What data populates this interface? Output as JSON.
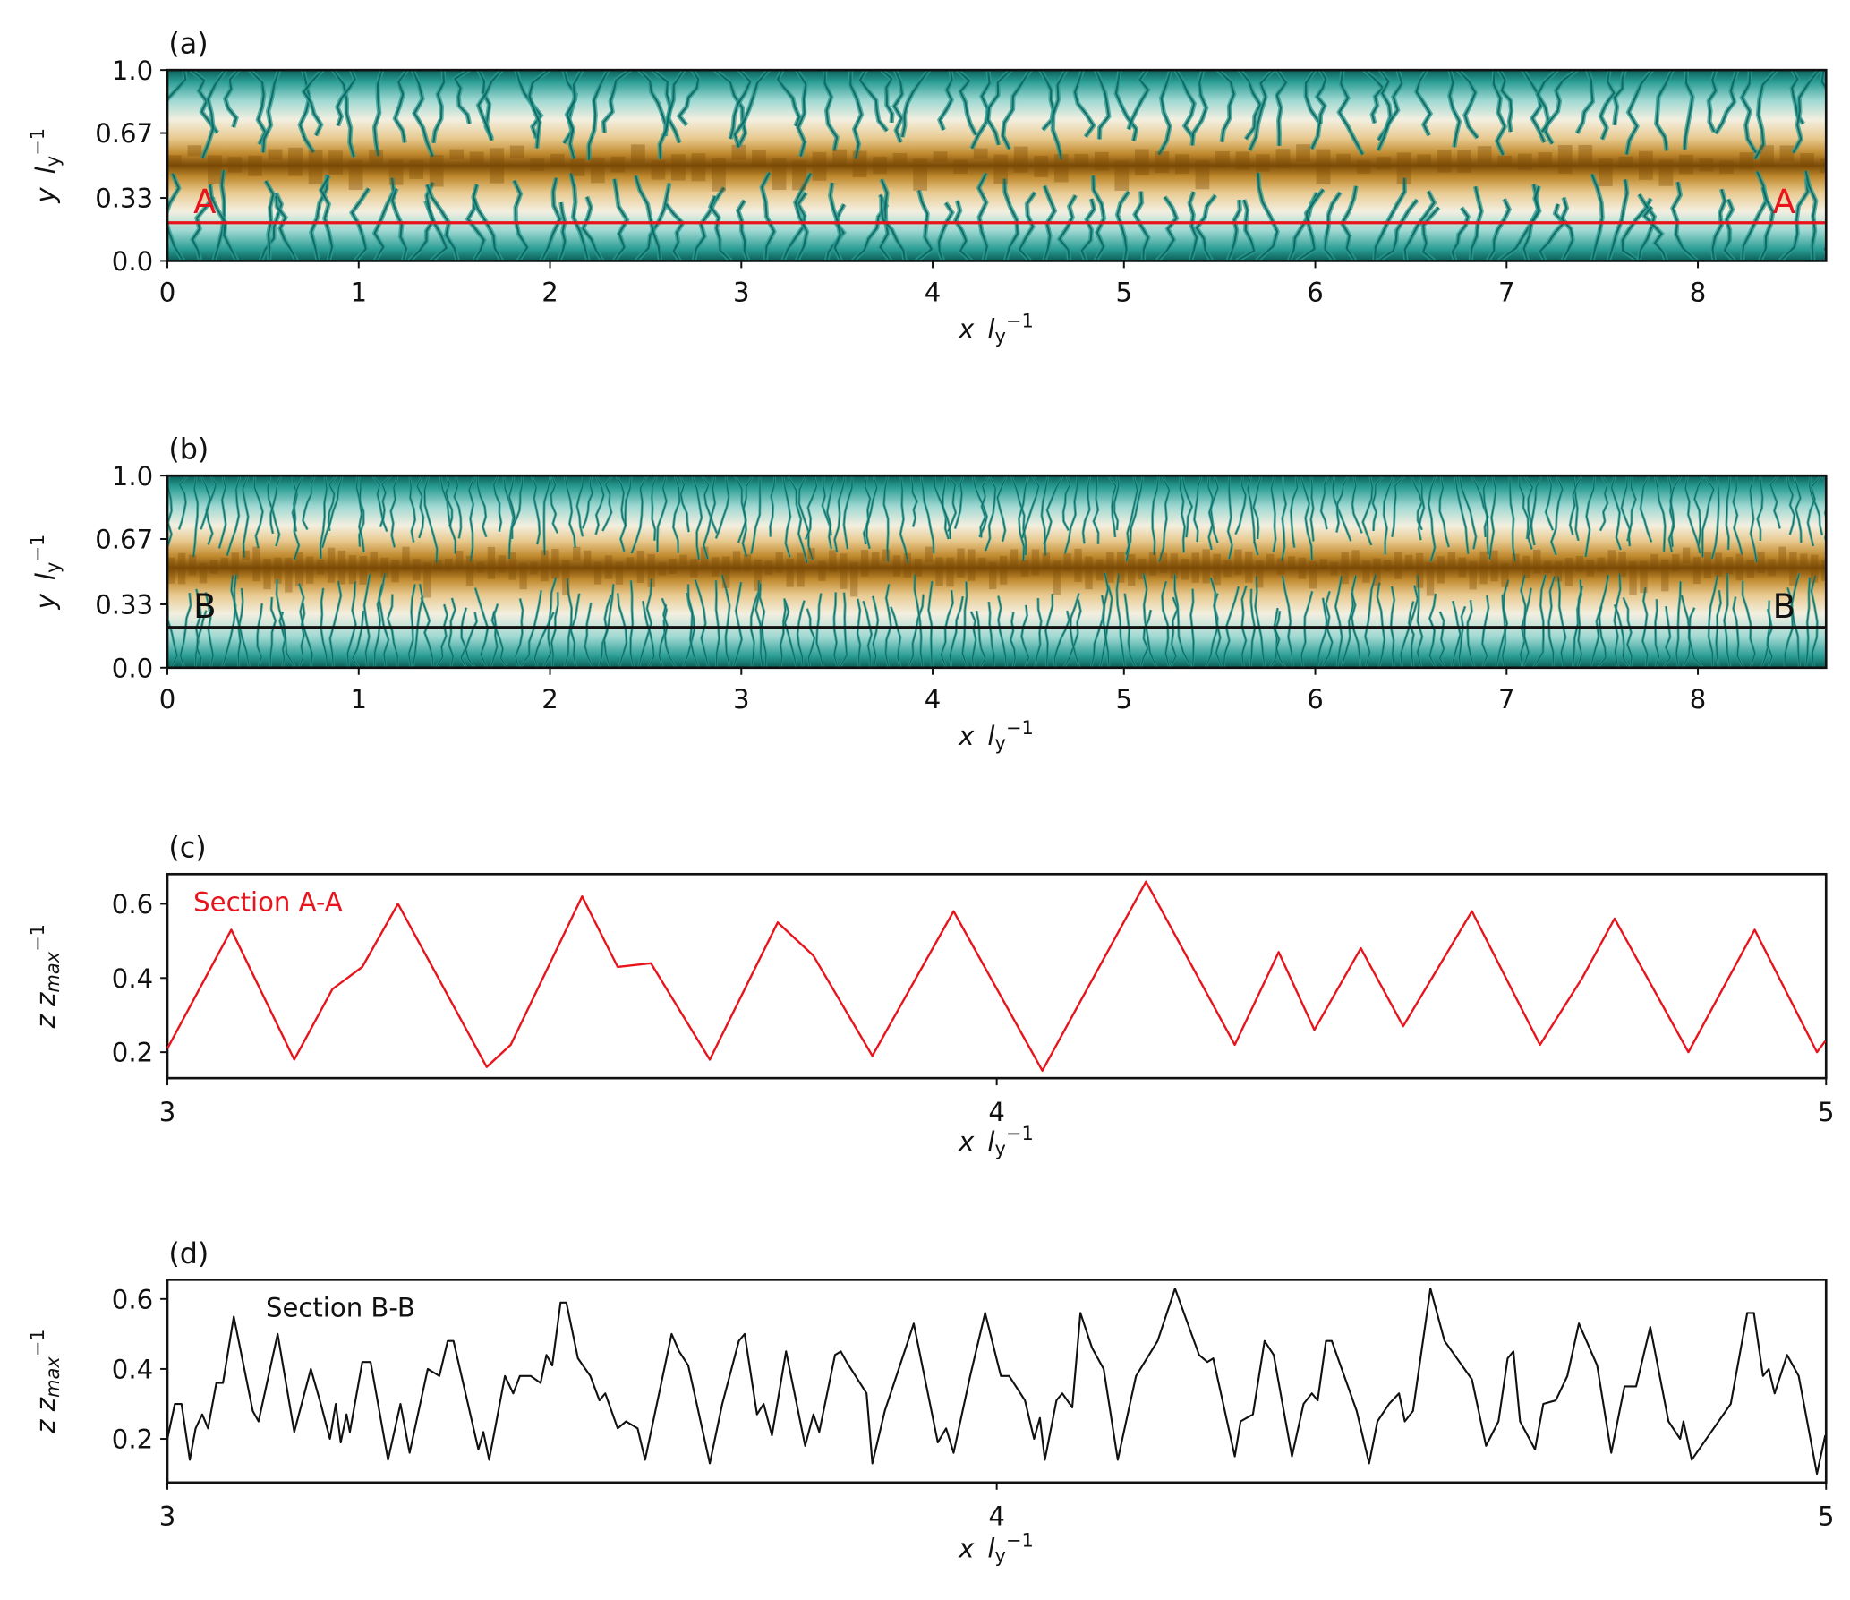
{
  "chart_data": [
    {
      "panel_label": "(a)",
      "type": "heatmap",
      "xlabel": "x l_y^{-1}",
      "ylabel": "y l_y^{-1}",
      "xlim": [
        0,
        8.67
      ],
      "ylim": [
        0,
        1.0
      ],
      "xticks": [
        "0",
        "1",
        "2",
        "3",
        "4",
        "5",
        "6",
        "7",
        "8"
      ],
      "yticks": [
        "0.0",
        "0.33",
        "0.67",
        "1.0"
      ],
      "colormap": [
        "#0b5e57",
        "#2a9d94",
        "#9fd8d2",
        "#f3efe0",
        "#e8c98f",
        "#c08a2e",
        "#7a4a06"
      ],
      "section_line": {
        "y": 0.2,
        "color": "#e8141c",
        "label_left": "A",
        "label_right": "A"
      },
      "ridge_y": 0.5,
      "texture": "coarse"
    },
    {
      "panel_label": "(b)",
      "type": "heatmap",
      "xlabel": "x l_y^{-1}",
      "ylabel": "y l_y^{-1}",
      "xlim": [
        0,
        8.67
      ],
      "ylim": [
        0,
        1.0
      ],
      "xticks": [
        "0",
        "1",
        "2",
        "3",
        "4",
        "5",
        "6",
        "7",
        "8"
      ],
      "yticks": [
        "0.0",
        "0.33",
        "0.67",
        "1.0"
      ],
      "colormap": [
        "#0b5e57",
        "#2a9d94",
        "#9fd8d2",
        "#f3efe0",
        "#e8c98f",
        "#c08a2e",
        "#7a4a06"
      ],
      "section_line": {
        "y": 0.21,
        "color": "#111111",
        "label_left": "B",
        "label_right": "B"
      },
      "ridge_y": 0.52,
      "texture": "fine"
    },
    {
      "panel_label": "(c)",
      "type": "line",
      "xlabel": "x l_y^{-1}",
      "ylabel": "z z_{max}^{-1}",
      "xlim": [
        3,
        5
      ],
      "ylim": [
        0.13,
        0.68
      ],
      "xticks": [
        3,
        4,
        5
      ],
      "yticks": [
        0.2,
        0.4,
        0.6
      ],
      "annotation": "Section A-A",
      "color": "#e8141c",
      "points": [
        [
          3.0,
          0.21
        ],
        [
          3.077,
          0.53
        ],
        [
          3.153,
          0.18
        ],
        [
          3.199,
          0.37
        ],
        [
          3.235,
          0.43
        ],
        [
          3.278,
          0.6
        ],
        [
          3.385,
          0.16
        ],
        [
          3.414,
          0.22
        ],
        [
          3.5,
          0.62
        ],
        [
          3.543,
          0.43
        ],
        [
          3.583,
          0.44
        ],
        [
          3.654,
          0.18
        ],
        [
          3.736,
          0.55
        ],
        [
          3.779,
          0.46
        ],
        [
          3.85,
          0.19
        ],
        [
          3.948,
          0.58
        ],
        [
          4.055,
          0.15
        ],
        [
          4.18,
          0.66
        ],
        [
          4.287,
          0.22
        ],
        [
          4.34,
          0.47
        ],
        [
          4.383,
          0.26
        ],
        [
          4.439,
          0.48
        ],
        [
          4.49,
          0.27
        ],
        [
          4.573,
          0.58
        ],
        [
          4.655,
          0.22
        ],
        [
          4.706,
          0.4
        ],
        [
          4.745,
          0.56
        ],
        [
          4.834,
          0.2
        ],
        [
          4.914,
          0.53
        ],
        [
          4.989,
          0.2
        ],
        [
          4.999,
          0.23
        ]
      ]
    },
    {
      "panel_label": "(d)",
      "type": "line",
      "xlabel": "x l_y^{-1}",
      "ylabel": "z z_{max}^{-1}",
      "xlim": [
        3,
        5
      ],
      "ylim": [
        0.075,
        0.655
      ],
      "xticks": [
        3,
        4,
        5
      ],
      "yticks": [
        0.2,
        0.4,
        0.6
      ],
      "annotation": "Section B-B",
      "color": "#111111",
      "points": [
        [
          3.0,
          0.2
        ],
        [
          3.009,
          0.3
        ],
        [
          3.017,
          0.3
        ],
        [
          3.027,
          0.14
        ],
        [
          3.034,
          0.23
        ],
        [
          3.042,
          0.27
        ],
        [
          3.049,
          0.23
        ],
        [
          3.059,
          0.36
        ],
        [
          3.067,
          0.36
        ],
        [
          3.08,
          0.55
        ],
        [
          3.103,
          0.28
        ],
        [
          3.11,
          0.25
        ],
        [
          3.133,
          0.5
        ],
        [
          3.153,
          0.22
        ],
        [
          3.173,
          0.4
        ],
        [
          3.185,
          0.3
        ],
        [
          3.196,
          0.2
        ],
        [
          3.203,
          0.3
        ],
        [
          3.209,
          0.19
        ],
        [
          3.216,
          0.27
        ],
        [
          3.22,
          0.22
        ],
        [
          3.235,
          0.42
        ],
        [
          3.245,
          0.42
        ],
        [
          3.266,
          0.14
        ],
        [
          3.281,
          0.3
        ],
        [
          3.292,
          0.16
        ],
        [
          3.314,
          0.4
        ],
        [
          3.328,
          0.38
        ],
        [
          3.338,
          0.48
        ],
        [
          3.345,
          0.48
        ],
        [
          3.375,
          0.17
        ],
        [
          3.381,
          0.22
        ],
        [
          3.388,
          0.14
        ],
        [
          3.407,
          0.38
        ],
        [
          3.417,
          0.33
        ],
        [
          3.425,
          0.38
        ],
        [
          3.438,
          0.38
        ],
        [
          3.45,
          0.36
        ],
        [
          3.457,
          0.44
        ],
        [
          3.464,
          0.41
        ],
        [
          3.474,
          0.59
        ],
        [
          3.481,
          0.59
        ],
        [
          3.495,
          0.43
        ],
        [
          3.51,
          0.38
        ],
        [
          3.521,
          0.31
        ],
        [
          3.528,
          0.33
        ],
        [
          3.543,
          0.23
        ],
        [
          3.553,
          0.25
        ],
        [
          3.567,
          0.23
        ],
        [
          3.576,
          0.14
        ],
        [
          3.608,
          0.5
        ],
        [
          3.617,
          0.45
        ],
        [
          3.628,
          0.41
        ],
        [
          3.654,
          0.13
        ],
        [
          3.669,
          0.3
        ],
        [
          3.689,
          0.48
        ],
        [
          3.696,
          0.5
        ],
        [
          3.711,
          0.27
        ],
        [
          3.719,
          0.3
        ],
        [
          3.729,
          0.21
        ],
        [
          3.746,
          0.45
        ],
        [
          3.769,
          0.18
        ],
        [
          3.779,
          0.27
        ],
        [
          3.786,
          0.22
        ],
        [
          3.805,
          0.44
        ],
        [
          3.812,
          0.45
        ],
        [
          3.819,
          0.42
        ],
        [
          3.843,
          0.33
        ],
        [
          3.85,
          0.13
        ],
        [
          3.865,
          0.28
        ],
        [
          3.893,
          0.48
        ],
        [
          3.9,
          0.53
        ],
        [
          3.929,
          0.19
        ],
        [
          3.939,
          0.23
        ],
        [
          3.948,
          0.16
        ],
        [
          3.968,
          0.38
        ],
        [
          3.986,
          0.56
        ],
        [
          4.005,
          0.38
        ],
        [
          4.015,
          0.38
        ],
        [
          4.034,
          0.31
        ],
        [
          4.045,
          0.2
        ],
        [
          4.052,
          0.26
        ],
        [
          4.058,
          0.14
        ],
        [
          4.072,
          0.31
        ],
        [
          4.079,
          0.33
        ],
        [
          4.091,
          0.29
        ],
        [
          4.101,
          0.56
        ],
        [
          4.115,
          0.46
        ],
        [
          4.129,
          0.4
        ],
        [
          4.146,
          0.14
        ],
        [
          4.168,
          0.38
        ],
        [
          4.194,
          0.48
        ],
        [
          4.208,
          0.58
        ],
        [
          4.215,
          0.63
        ],
        [
          4.244,
          0.44
        ],
        [
          4.254,
          0.42
        ],
        [
          4.261,
          0.43
        ],
        [
          4.287,
          0.15
        ],
        [
          4.294,
          0.25
        ],
        [
          4.309,
          0.27
        ],
        [
          4.323,
          0.48
        ],
        [
          4.334,
          0.44
        ],
        [
          4.356,
          0.15
        ],
        [
          4.37,
          0.3
        ],
        [
          4.38,
          0.33
        ],
        [
          4.387,
          0.31
        ],
        [
          4.397,
          0.48
        ],
        [
          4.404,
          0.48
        ],
        [
          4.434,
          0.28
        ],
        [
          4.449,
          0.13
        ],
        [
          4.459,
          0.25
        ],
        [
          4.473,
          0.3
        ],
        [
          4.485,
          0.33
        ],
        [
          4.492,
          0.25
        ],
        [
          4.502,
          0.28
        ],
        [
          4.523,
          0.63
        ],
        [
          4.54,
          0.48
        ],
        [
          4.573,
          0.37
        ],
        [
          4.59,
          0.18
        ],
        [
          4.605,
          0.25
        ],
        [
          4.616,
          0.43
        ],
        [
          4.623,
          0.45
        ],
        [
          4.631,
          0.25
        ],
        [
          4.649,
          0.17
        ],
        [
          4.659,
          0.3
        ],
        [
          4.674,
          0.31
        ],
        [
          4.688,
          0.38
        ],
        [
          4.702,
          0.53
        ],
        [
          4.724,
          0.41
        ],
        [
          4.741,
          0.16
        ],
        [
          4.757,
          0.35
        ],
        [
          4.771,
          0.35
        ],
        [
          4.788,
          0.52
        ],
        [
          4.81,
          0.25
        ],
        [
          4.824,
          0.2
        ],
        [
          4.828,
          0.25
        ],
        [
          4.838,
          0.14
        ],
        [
          4.885,
          0.3
        ],
        [
          4.905,
          0.56
        ],
        [
          4.913,
          0.56
        ],
        [
          4.924,
          0.38
        ],
        [
          4.931,
          0.4
        ],
        [
          4.938,
          0.33
        ],
        [
          4.953,
          0.44
        ],
        [
          4.967,
          0.38
        ],
        [
          4.989,
          0.1
        ],
        [
          4.999,
          0.21
        ]
      ]
    }
  ]
}
